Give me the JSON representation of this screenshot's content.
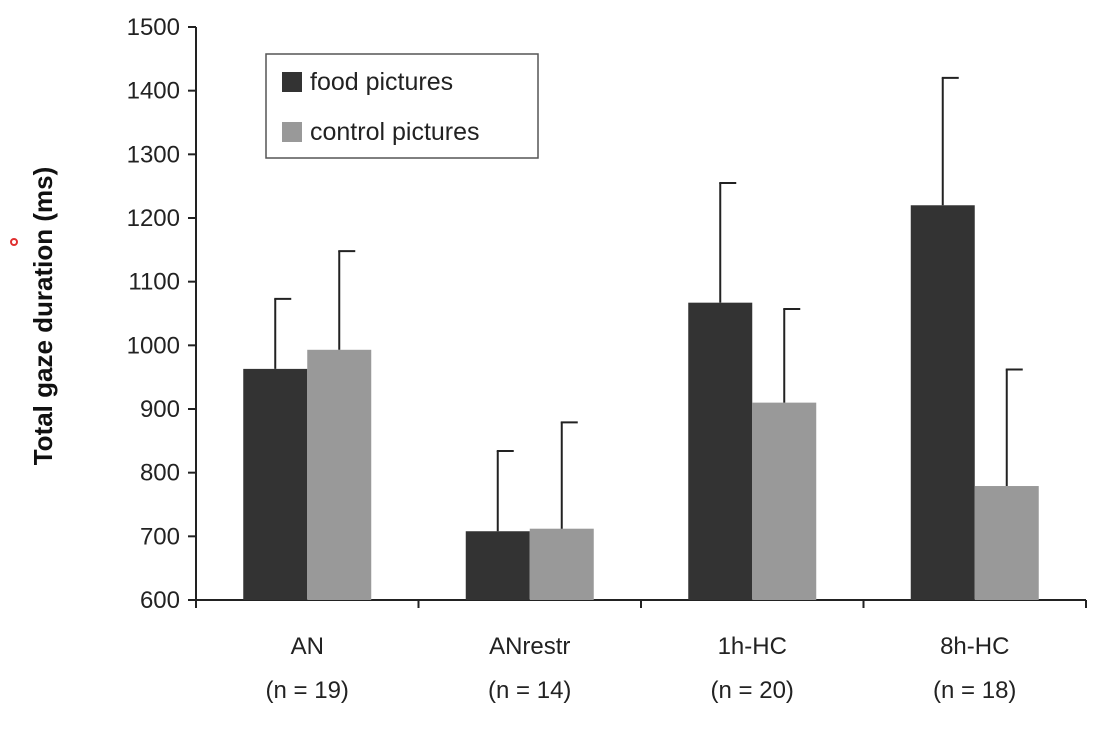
{
  "chart_data": {
    "type": "bar",
    "title": "",
    "xlabel": "",
    "ylabel": "Total gaze duration (ms)",
    "ylim": [
      600,
      1500
    ],
    "yticks": [
      600,
      700,
      800,
      900,
      1000,
      1100,
      1200,
      1300,
      1400,
      1500
    ],
    "categories": [
      "AN",
      "ANrestr",
      "1h-HC",
      "8h-HC"
    ],
    "category_sublabels": [
      "(n = 19)",
      "(n = 14)",
      "(n = 20)",
      "(n = 18)"
    ],
    "series": [
      {
        "name": "food pictures",
        "color": "#333333",
        "values": [
          963,
          708,
          1067,
          1220
        ],
        "error_upper": [
          1073,
          834,
          1255,
          1420
        ]
      },
      {
        "name": "control pictures",
        "color": "#999999",
        "values": [
          993,
          712,
          910,
          779
        ],
        "error_upper": [
          1148,
          879,
          1057,
          962
        ]
      }
    ],
    "legend": {
      "position": "top-left"
    },
    "grid": false
  }
}
